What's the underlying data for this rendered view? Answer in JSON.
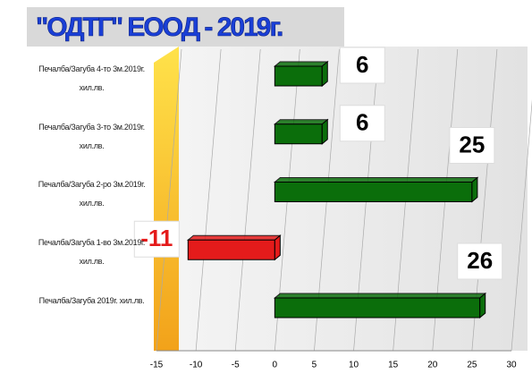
{
  "chart_data": {
    "type": "bar",
    "title": "\"ОДТГ\" ЕООД - 2019г.",
    "categories": [
      "Печалба/Загуба 4-то 3м.2019г. хил.лв.",
      "Печалба/Загуба 3-то 3м.2019г. хил.лв.",
      "Печалба/Загуба 2-ро 3м.2019г. хил.лв.",
      "Печалба/Загуба 1-во 3м.2019г. хил.лв.",
      "Печалба/Загуба 2019г. хил.лв."
    ],
    "values": [
      6,
      6,
      25,
      -11,
      26
    ],
    "colors": [
      "#0b6e0b",
      "#0b6e0b",
      "#0b6e0b",
      "#e41b1b",
      "#0b6e0b"
    ],
    "xlim": [
      -15,
      30
    ],
    "xticks": [
      -15,
      -10,
      -5,
      0,
      5,
      10,
      15,
      20,
      25,
      30
    ],
    "grid": true
  }
}
